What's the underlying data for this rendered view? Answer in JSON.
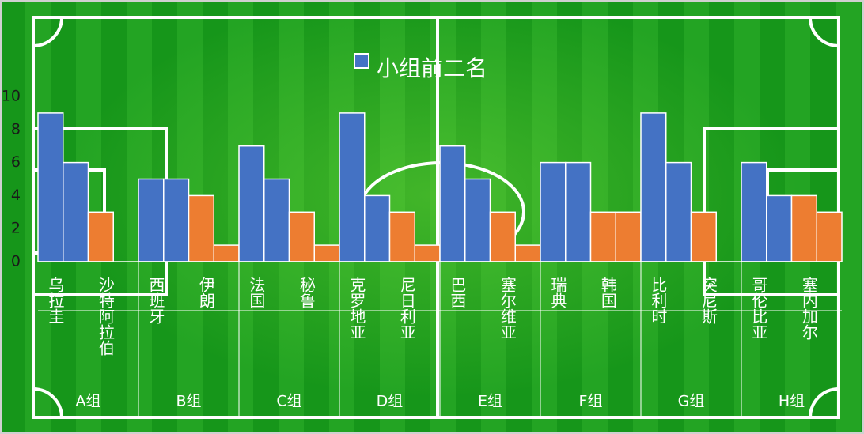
{
  "chart_data": {
    "type": "bar",
    "legend": "小组前二名",
    "color": "#4472c4",
    "categories": [
      "乌拉圭",
      null,
      "沙特阿拉伯",
      null,
      "西班牙",
      null,
      "伊朗",
      null,
      "法国",
      null,
      "秘鲁",
      null,
      "克罗地亚",
      null,
      "尼日利亚",
      null,
      "巴西",
      null,
      "塞尔维亚",
      null,
      "瑞典",
      null,
      "韩国",
      null,
      "比利时",
      null,
      "突尼斯",
      null,
      "哥伦比亚",
      null,
      "塞内加尔",
      null
    ],
    "values": [
      9,
      6,
      3,
      0,
      5,
      5,
      4,
      1,
      7,
      5,
      3,
      1,
      9,
      4,
      3,
      1,
      7,
      5,
      3,
      1,
      6,
      6,
      3,
      3,
      9,
      6,
      3,
      0,
      6,
      4,
      4,
      3
    ],
    "colors": [
      "#4472c4",
      "#4472c4",
      "#ed7d31",
      "#ed7d31",
      "#4472c4",
      "#4472c4",
      "#ed7d31",
      "#ed7d31",
      "#4472c4",
      "#4472c4",
      "#ed7d31",
      "#ed7d31",
      "#4472c4",
      "#4472c4",
      "#ed7d31",
      "#ed7d31",
      "#4472c4",
      "#4472c4",
      "#ed7d31",
      "#ed7d31",
      "#4472c4",
      "#4472c4",
      "#ed7d31",
      "#ed7d31",
      "#4472c4",
      "#4472c4",
      "#ed7d31",
      "#ed7d31",
      "#4472c4",
      "#4472c4",
      "#ed7d31",
      "#ed7d31"
    ],
    "group_labels": [
      "A组",
      "B组",
      "C组",
      "D组",
      "E组",
      "F组",
      "G组",
      "H组"
    ],
    "ylim": [
      0,
      10
    ],
    "yticks": [
      0,
      2,
      4,
      6,
      8,
      10
    ]
  }
}
